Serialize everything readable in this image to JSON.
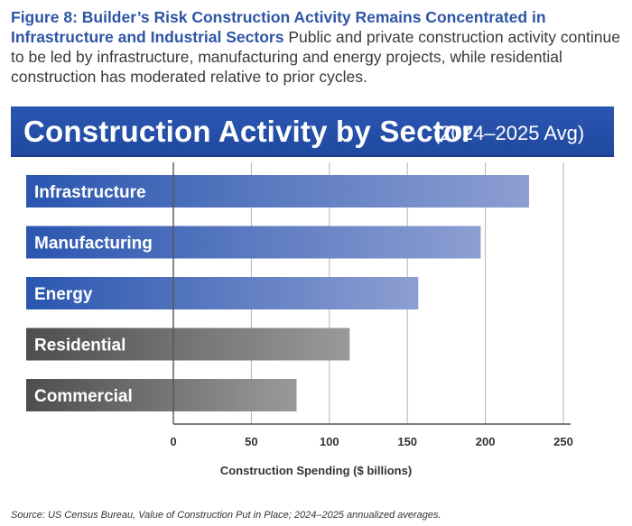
{
  "caption": {
    "label": "Figure 8: Builder’s Risk Construction Activity Remains Concentrated in Infrastructure and Industrial Sectors",
    "text": "Public and private construction activity continue to be led by infrastructure, manufacturing and energy projects, while residential construction has moderated relative to prior cycles."
  },
  "chart_data": {
    "type": "bar",
    "orientation": "horizontal",
    "title": "Construction Activity by Sector",
    "subtitle": "(2024–2025 Avg)",
    "categories": [
      "Infrastructure",
      "Manufacturing",
      "Energy",
      "Residential",
      "Commercial"
    ],
    "values": [
      228,
      197,
      157,
      113,
      79
    ],
    "colors": {
      "Infrastructure": "blue",
      "Manufacturing": "blue",
      "Energy": "blue",
      "Residential": "gray",
      "Commercial": "gray"
    },
    "palette": {
      "blue": [
        "#2a56b0",
        "#8d9fd2"
      ],
      "gray": [
        "#4e4e4e",
        "#9a9a9a"
      ]
    },
    "xlabel": "Construction Spending ($ billions)",
    "ylabel": "",
    "xlim": [
      0,
      250
    ],
    "xticks": [
      "0",
      "50",
      "100",
      "150",
      "200",
      "250"
    ],
    "grid": true
  },
  "source": "Source: US Census Bureau, Value of Construction Put in Place; 2024–2025 annualized averages."
}
